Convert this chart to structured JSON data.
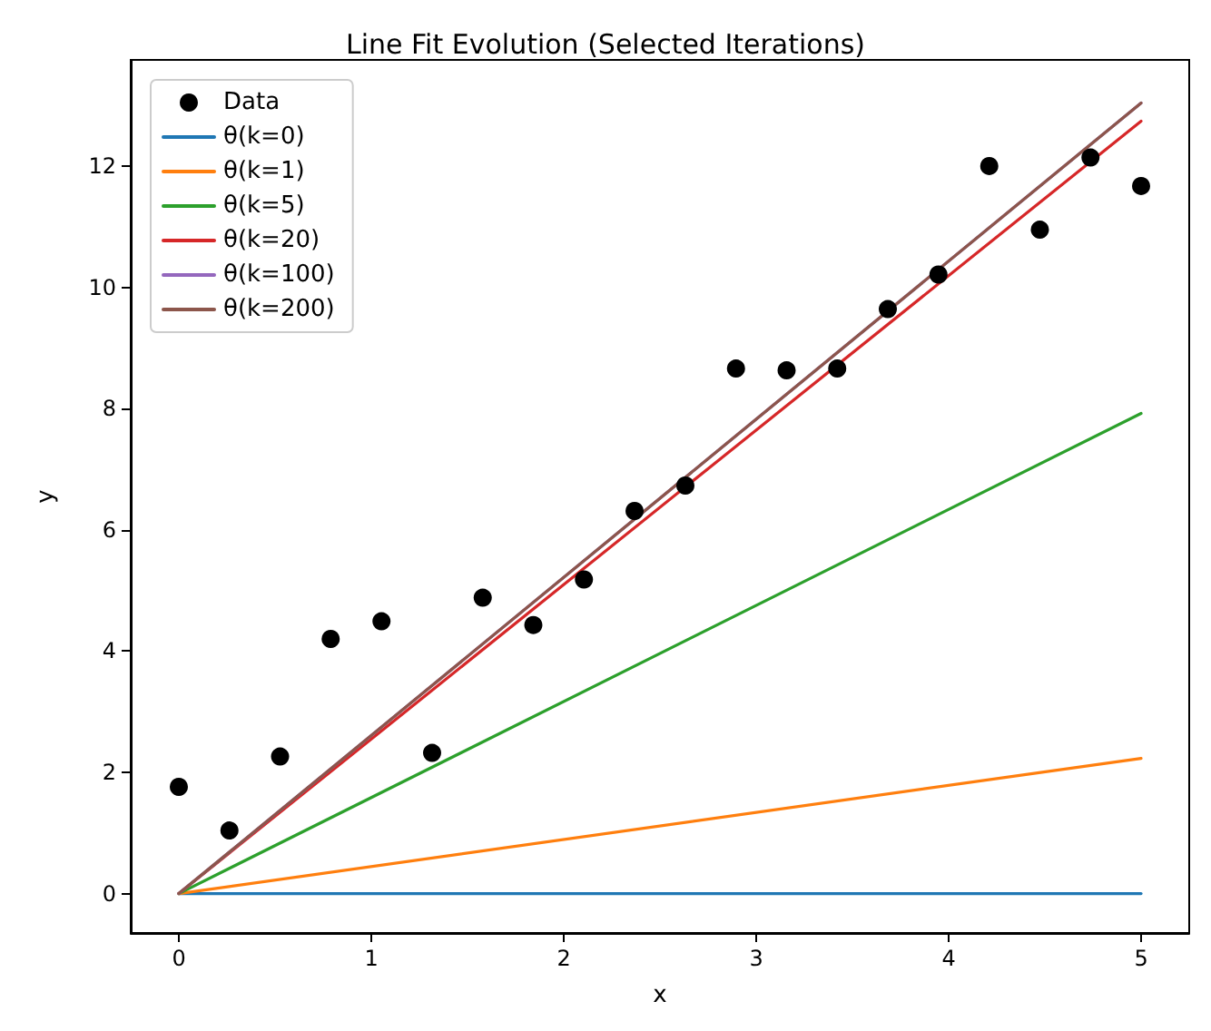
{
  "chart_data": {
    "type": "line",
    "title": "Line Fit Evolution (Selected Iterations)",
    "xlabel": "x",
    "ylabel": "y",
    "xlim": [
      -0.25,
      5.25
    ],
    "ylim": [
      -0.65,
      13.75
    ],
    "xticks": [
      0,
      1,
      2,
      3,
      4,
      5
    ],
    "yticks": [
      0,
      2,
      4,
      6,
      8,
      10,
      12
    ],
    "grid": false,
    "legend": "top left",
    "marker": "none",
    "line_style": "solid",
    "series": [
      {
        "name": "Data",
        "type": "scatter",
        "marker": "circle",
        "color": "#000000",
        "x": [
          0,
          0.263,
          0.526,
          0.789,
          1.053,
          1.316,
          1.579,
          1.842,
          2.105,
          2.368,
          2.632,
          2.895,
          3.158,
          3.421,
          3.684,
          3.947,
          4.211,
          4.474,
          4.737,
          5.0
        ],
        "values": [
          1.76,
          1.04,
          2.26,
          4.2,
          4.49,
          2.32,
          4.88,
          4.43,
          5.18,
          6.31,
          6.73,
          8.66,
          8.63,
          8.66,
          9.64,
          10.21,
          12.0,
          10.95,
          12.14,
          11.67
        ]
      },
      {
        "name": "θ(k=0)",
        "color": "#1f77b4",
        "x": [
          0,
          5
        ],
        "values": [
          0,
          0
        ]
      },
      {
        "name": "θ(k=1)",
        "color": "#ff7f0e",
        "x": [
          0,
          5
        ],
        "values": [
          0,
          2.23
        ]
      },
      {
        "name": "θ(k=5)",
        "color": "#2ca02c",
        "x": [
          0,
          5
        ],
        "values": [
          0,
          7.92
        ]
      },
      {
        "name": "θ(k=20)",
        "color": "#d62728",
        "x": [
          0,
          5
        ],
        "values": [
          0,
          12.74
        ]
      },
      {
        "name": "θ(k=100)",
        "color": "#9467bd",
        "x": [
          0,
          5
        ],
        "values": [
          0,
          13.04
        ]
      },
      {
        "name": "θ(k=200)",
        "color": "#8c564b",
        "x": [
          0,
          5
        ],
        "values": [
          0,
          13.04
        ]
      }
    ]
  }
}
